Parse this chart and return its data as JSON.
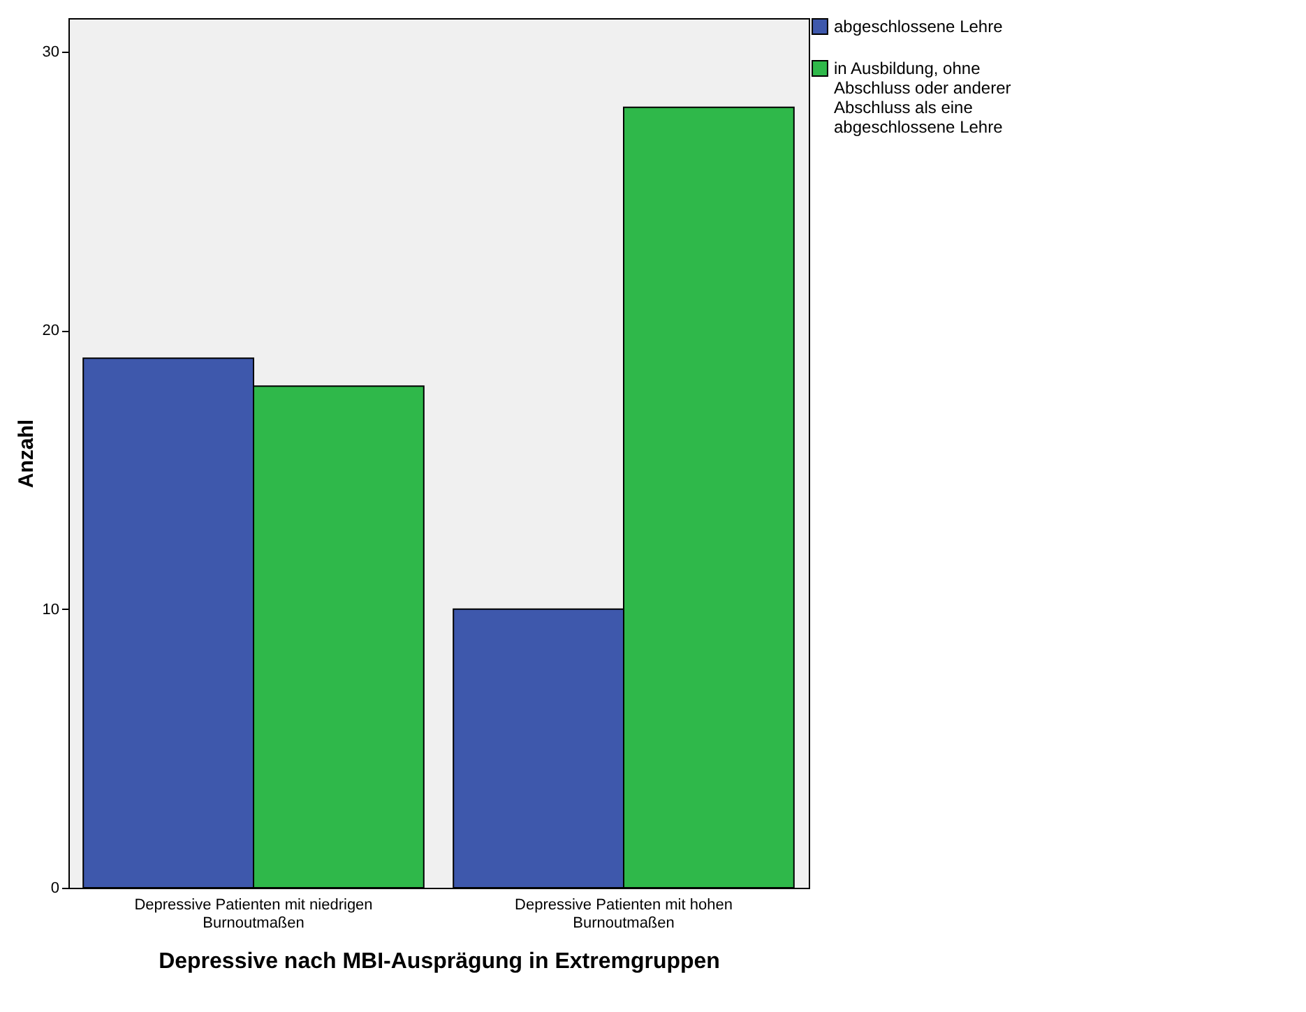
{
  "chart_data": {
    "type": "bar",
    "xlabel": "Depressive nach MBI-Ausprägung in Extremgruppen",
    "ylabel": "Anzahl",
    "categories": [
      "Depressive Patienten mit niedrigen Burnoutmaßen",
      "Depressive Patienten mit hohen Burnoutmaßen"
    ],
    "series": [
      {
        "name": "abgeschlossene Lehre",
        "color": "#3e58ac",
        "values": [
          19,
          10
        ]
      },
      {
        "name": "in Ausbildung, ohne Abschluss oder anderer Abschluss als eine abgeschlossene Lehre",
        "color": "#2fb84a",
        "values": [
          18,
          28
        ]
      }
    ],
    "ylim": [
      0,
      31.2
    ],
    "yticks": [
      0,
      10,
      20,
      30
    ],
    "grid": false,
    "legend": "top right"
  }
}
